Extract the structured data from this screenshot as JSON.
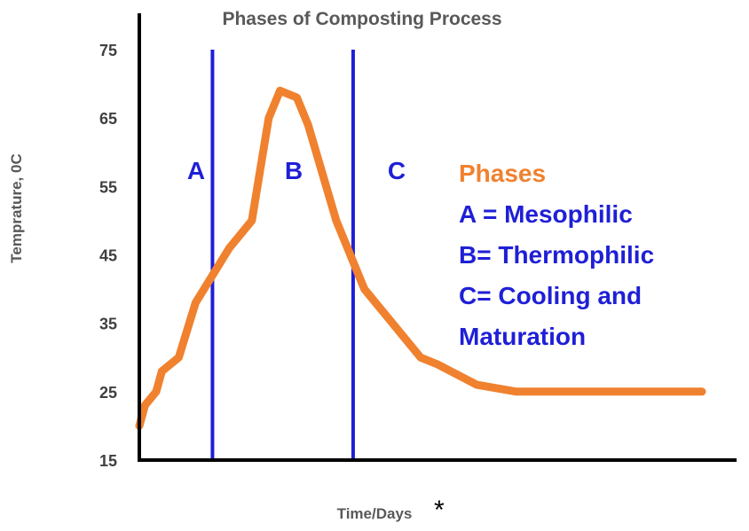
{
  "chart_data": {
    "type": "line",
    "title": "Phases of Composting Process",
    "xlabel": "Time/Days",
    "xlabel_marker": "*",
    "ylabel": "Temprature, 0C",
    "ylim": [
      15,
      75
    ],
    "yticks": [
      "75",
      "65",
      "55",
      "45",
      "35",
      "25",
      "15"
    ],
    "xlim": [
      0,
      100
    ],
    "grid": false,
    "series": [
      {
        "name": "Temperature",
        "color": "#f0812f",
        "x": [
          0,
          1,
          3,
          4,
          7,
          10,
          16,
          20,
          21,
          23,
          25,
          28,
          30,
          35,
          40,
          45,
          50,
          53,
          60,
          67,
          80,
          92,
          98,
          100
        ],
        "y": [
          20,
          23,
          25,
          28,
          30,
          38,
          46,
          50,
          55,
          65,
          69,
          68,
          64,
          50,
          40,
          35,
          30,
          29,
          26,
          25,
          25,
          25,
          25,
          25
        ]
      }
    ],
    "phase_lines": [
      {
        "x": 13,
        "color": "#1f1fd6"
      },
      {
        "x": 38,
        "color": "#1f1fd6"
      }
    ],
    "phase_labels": [
      "A",
      "B",
      "C"
    ],
    "legend": {
      "heading": "Phases",
      "heading_color": "#f0812f",
      "item_color": "#1f1fd6",
      "items": [
        "A = Mesophilic",
        "B= Thermophilic",
        "C= Cooling and",
        "Maturation"
      ]
    }
  }
}
